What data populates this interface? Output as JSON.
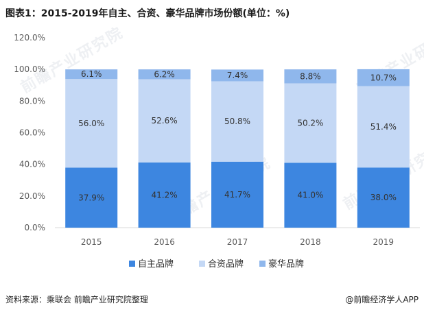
{
  "title": "图表1：2015-2019年自主、合资、豪华品牌市场份额(单位：%)",
  "source": "资料来源：乘联会 前瞻产业研究院整理",
  "brand": "@前瞻经济学人APP",
  "watermark": "前瞻产业研究院",
  "colors": {
    "own": "#3d86e0",
    "jv": "#c4d8f5",
    "lux": "#8fb7ec",
    "grid": "#d9d9d9",
    "axis": "#595959"
  },
  "chart_data": {
    "type": "bar",
    "stacked": true,
    "categories": [
      "2015",
      "2016",
      "2017",
      "2018",
      "2019"
    ],
    "series": [
      {
        "name": "自主品牌",
        "values": [
          37.9,
          41.2,
          41.7,
          41.0,
          38.0
        ],
        "labels": [
          "37.9%",
          "41.2%",
          "41.7%",
          "41.0%",
          "38.0%"
        ]
      },
      {
        "name": "合资品牌",
        "values": [
          56.0,
          52.6,
          50.8,
          50.2,
          51.4
        ],
        "labels": [
          "56.0%",
          "52.6%",
          "50.8%",
          "50.2%",
          "51.4%"
        ]
      },
      {
        "name": "豪华品牌",
        "values": [
          6.1,
          6.2,
          7.4,
          8.8,
          10.7
        ],
        "labels": [
          "6.1%",
          "6.2%",
          "7.4%",
          "8.8%",
          "10.7%"
        ]
      }
    ],
    "yticks": [
      "0.0%",
      "20.0%",
      "40.0%",
      "60.0%",
      "80.0%",
      "100.0%",
      "120.0%"
    ],
    "ylim": [
      0,
      120
    ],
    "legend": "bottom",
    "grid": false
  }
}
